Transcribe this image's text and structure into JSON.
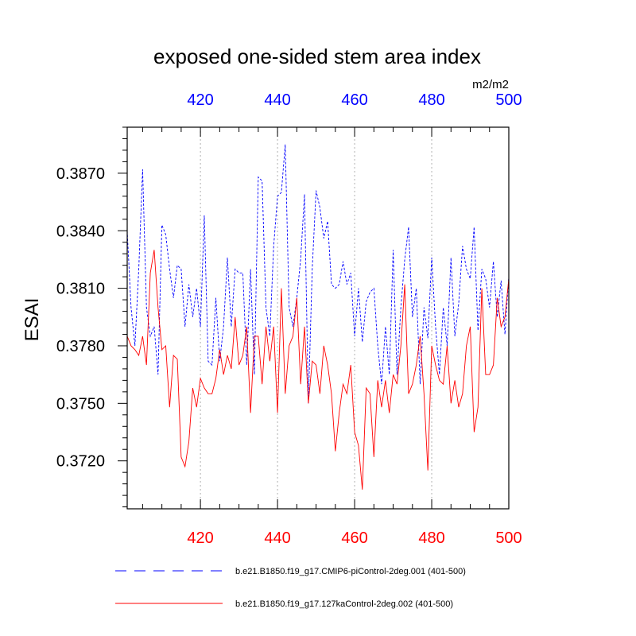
{
  "chart_data": {
    "type": "line",
    "title": "exposed one-sided stem area index",
    "units_label": "m2/m2",
    "ylabel": "ESAI",
    "xlim": [
      401,
      500
    ],
    "ylim": [
      0.3695,
      0.3894
    ],
    "x_ticks": [
      420,
      440,
      460,
      480,
      500
    ],
    "x_tick_labels": [
      "420",
      "440",
      "460",
      "480",
      "500"
    ],
    "y_ticks": [
      0.372,
      0.375,
      0.378,
      0.381,
      0.384,
      0.387
    ],
    "y_tick_labels": [
      "0.3720",
      "0.3750",
      "0.3780",
      "0.3810",
      "0.3840",
      "0.3870"
    ],
    "top_axis_color": "#0000ff",
    "bottom_axis_color": "#ff0000",
    "grid": "vertical dotted at x ticks",
    "legend_position": "bottom",
    "series": [
      {
        "name": "b.e21.B1850.f19_g17.CMIP6-piControl-2deg.001 (401-500)",
        "color": "#0000ff",
        "dash": "dashed",
        "x_start": 401,
        "values": [
          0.384,
          0.38,
          0.378,
          0.382,
          0.3872,
          0.38,
          0.3785,
          0.379,
          0.3765,
          0.3843,
          0.3838,
          0.382,
          0.3805,
          0.3822,
          0.382,
          0.379,
          0.3812,
          0.3795,
          0.381,
          0.379,
          0.3848,
          0.3772,
          0.377,
          0.3805,
          0.3772,
          0.379,
          0.3826,
          0.379,
          0.382,
          0.3818,
          0.3818,
          0.377,
          0.382,
          0.3765,
          0.3868,
          0.3866,
          0.38,
          0.3785,
          0.3832,
          0.3858,
          0.386,
          0.3885,
          0.38,
          0.379,
          0.3805,
          0.3825,
          0.3859,
          0.375,
          0.382,
          0.3861,
          0.3852,
          0.3836,
          0.3845,
          0.3812,
          0.381,
          0.3812,
          0.3824,
          0.3812,
          0.3818,
          0.3785,
          0.381,
          0.3782,
          0.3803,
          0.3808,
          0.381,
          0.378,
          0.376,
          0.379,
          0.3765,
          0.383,
          0.3765,
          0.38,
          0.3825,
          0.3842,
          0.3795,
          0.381,
          0.376,
          0.38,
          0.3784,
          0.3826,
          0.379,
          0.3765,
          0.38,
          0.378,
          0.3826,
          0.3785,
          0.3802,
          0.3832,
          0.382,
          0.3815,
          0.3842,
          0.3788,
          0.382,
          0.3815,
          0.38,
          0.3824,
          0.3795,
          0.3814,
          0.3786,
          0.3816
        ]
      },
      {
        "name": "b.e21.B1850.f19_g17.127kaControl-2deg.002 (401-500)",
        "color": "#ff0000",
        "dash": "solid",
        "x_start": 401,
        "values": [
          0.3785,
          0.378,
          0.3778,
          0.3775,
          0.3785,
          0.377,
          0.3818,
          0.383,
          0.38,
          0.3778,
          0.378,
          0.3748,
          0.3775,
          0.3773,
          0.3722,
          0.3717,
          0.373,
          0.3758,
          0.3748,
          0.3763,
          0.3758,
          0.3755,
          0.3755,
          0.3763,
          0.3778,
          0.3765,
          0.3775,
          0.3768,
          0.3795,
          0.377,
          0.3775,
          0.379,
          0.3745,
          0.3785,
          0.3785,
          0.376,
          0.379,
          0.3772,
          0.379,
          0.3745,
          0.381,
          0.3755,
          0.378,
          0.3785,
          0.3805,
          0.376,
          0.379,
          0.375,
          0.3772,
          0.377,
          0.3755,
          0.378,
          0.377,
          0.3755,
          0.3725,
          0.3745,
          0.376,
          0.3755,
          0.377,
          0.3735,
          0.3728,
          0.3705,
          0.3758,
          0.3755,
          0.3722,
          0.3762,
          0.3748,
          0.3762,
          0.3745,
          0.3765,
          0.376,
          0.378,
          0.3812,
          0.3755,
          0.376,
          0.377,
          0.3785,
          0.3755,
          0.3715,
          0.378,
          0.377,
          0.3762,
          0.376,
          0.378,
          0.375,
          0.3762,
          0.3748,
          0.3755,
          0.378,
          0.379,
          0.3735,
          0.3748,
          0.381,
          0.3765,
          0.3765,
          0.377,
          0.3805,
          0.379,
          0.3795,
          0.3815
        ]
      }
    ]
  }
}
